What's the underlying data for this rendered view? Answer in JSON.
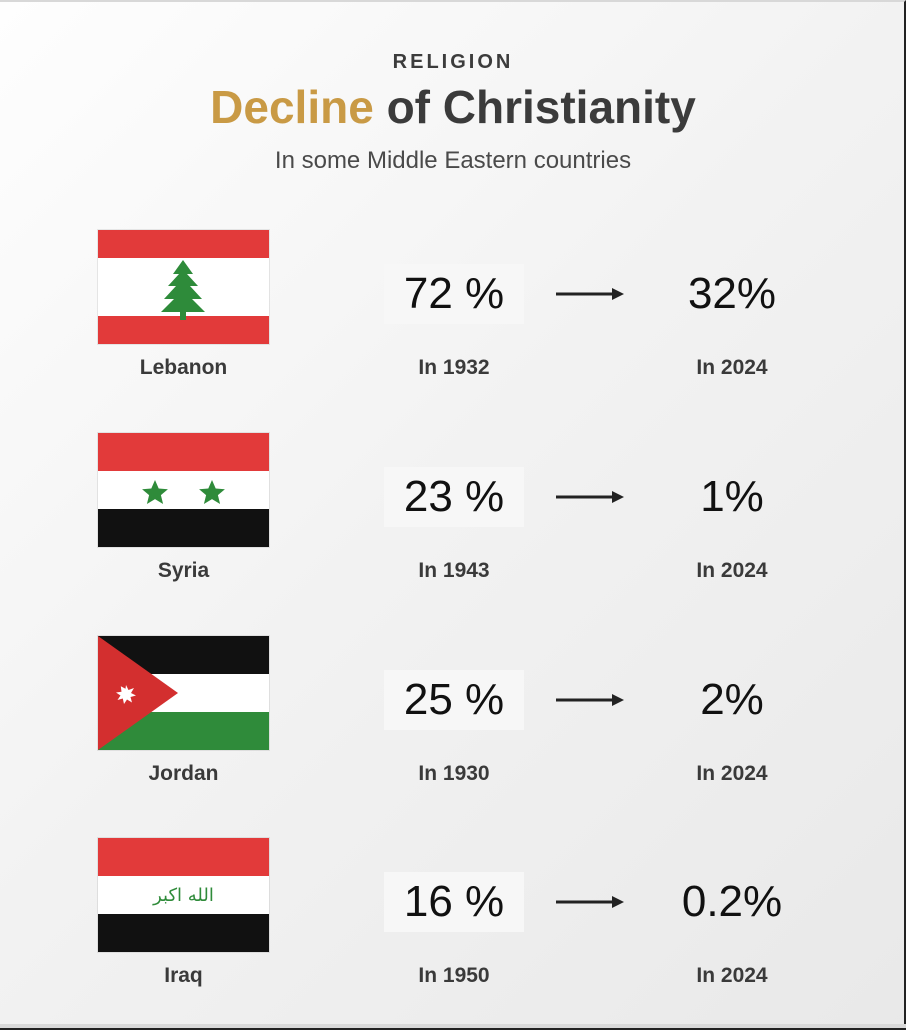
{
  "header": {
    "eyebrow": "RELIGION",
    "title_accent": "Decline",
    "title_rest": " of Christianity",
    "subtitle": "In some Middle Eastern countries"
  },
  "rows": [
    {
      "country": "Lebanon",
      "start_value": "72 %",
      "end_value": "32%",
      "start_year": "In 1932",
      "end_year": "In 2024",
      "flag_icon": "lebanon-flag-icon"
    },
    {
      "country": "Syria",
      "start_value": "23 %",
      "end_value": "1%",
      "start_year": "In 1943",
      "end_year": "In 2024",
      "flag_icon": "syria-flag-icon"
    },
    {
      "country": "Jordan",
      "start_value": "25 %",
      "end_value": "2%",
      "start_year": "In 1930",
      "end_year": "In 2024",
      "flag_icon": "jordan-flag-icon"
    },
    {
      "country": "Iraq",
      "start_value": "16 %",
      "end_value": "0.2%",
      "start_year": "In 1950",
      "end_year": "In 2024",
      "flag_icon": "iraq-flag-icon"
    }
  ],
  "colors": {
    "accent": "#c99a45",
    "text": "#3b3b3b",
    "red": "#d22f2f",
    "green": "#2f8b3a",
    "black": "#111111",
    "white": "#ffffff"
  },
  "flag_text": {
    "iraq": "الله اكبر"
  }
}
